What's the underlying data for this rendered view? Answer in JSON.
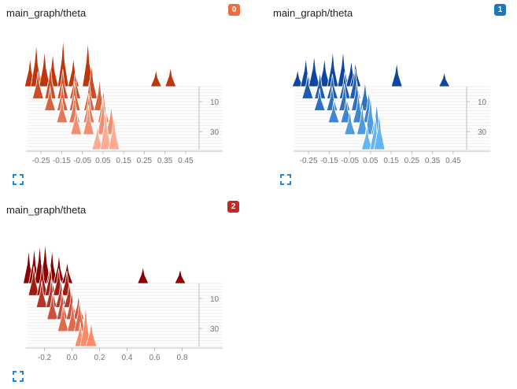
{
  "cards": [
    {
      "title": "main_graph/theta",
      "badge": "0",
      "badge_color": "#ef6c3e",
      "palette": [
        "#bf360c",
        "#ffab91"
      ],
      "expand_icon": "fullscreen-icon",
      "chart_data": {
        "type": "histogram",
        "title": "main_graph/theta",
        "x_range": [
          -0.3,
          0.5
        ],
        "x_ticks": [
          -0.25,
          -0.15,
          -0.05,
          0.05,
          0.15,
          0.25,
          0.35,
          0.45
        ],
        "x_tick_labels": [
          "-0.25",
          "-0.15",
          "-0.05",
          "0.05",
          "0.15",
          "0.25",
          "0.35",
          "0.45"
        ],
        "step_ticks": [
          10,
          30
        ],
        "step_tick_labels": [
          "10",
          "30"
        ],
        "slices": [
          {
            "step": 0,
            "peaks": [
              [
                -0.28,
                0.6
              ],
              [
                -0.25,
                0.9
              ],
              [
                -0.21,
                0.75
              ],
              [
                -0.17,
                0.7
              ],
              [
                -0.12,
                1.0
              ],
              [
                -0.07,
                0.6
              ],
              [
                0.0,
                0.95
              ],
              [
                0.33,
                0.35
              ],
              [
                0.4,
                0.4
              ]
            ]
          },
          {
            "step": 8,
            "peaks": [
              [
                -0.26,
                0.55
              ],
              [
                -0.2,
                0.7
              ],
              [
                -0.14,
                0.6
              ],
              [
                -0.08,
                0.55
              ],
              [
                0.0,
                0.7
              ]
            ]
          },
          {
            "step": 16,
            "peaks": [
              [
                -0.22,
                0.5
              ],
              [
                -0.16,
                0.55
              ],
              [
                -0.1,
                0.6
              ],
              [
                -0.03,
                0.6
              ],
              [
                0.02,
                0.65
              ]
            ]
          },
          {
            "step": 24,
            "peaks": [
              [
                -0.18,
                0.5
              ],
              [
                -0.12,
                0.55
              ],
              [
                -0.05,
                0.6
              ],
              [
                0.02,
                0.7
              ]
            ]
          },
          {
            "step": 32,
            "peaks": [
              [
                -0.13,
                0.55
              ],
              [
                -0.07,
                0.6
              ],
              [
                0.0,
                0.75
              ],
              [
                0.04,
                0.6
              ]
            ]
          },
          {
            "step": 42,
            "peaks": [
              [
                -0.05,
                0.5
              ],
              [
                -0.01,
                0.85
              ],
              [
                0.03,
                0.7
              ]
            ]
          }
        ]
      }
    },
    {
      "title": "main_graph/theta",
      "badge": "1",
      "badge_color": "#1f77b4",
      "palette": [
        "#0d47a1",
        "#64b5f6"
      ],
      "expand_icon": "fullscreen-icon",
      "chart_data": {
        "type": "histogram",
        "title": "main_graph/theta",
        "x_range": [
          -0.3,
          0.5
        ],
        "x_ticks": [
          -0.25,
          -0.15,
          -0.05,
          0.05,
          0.15,
          0.25,
          0.35,
          0.45
        ],
        "x_tick_labels": [
          "-0.25",
          "-0.15",
          "-0.05",
          "0.05",
          "0.15",
          "0.25",
          "0.35",
          "0.45"
        ],
        "step_ticks": [
          10,
          30
        ],
        "step_tick_labels": [
          "10",
          "30"
        ],
        "slices": [
          {
            "step": 0,
            "peaks": [
              [
                -0.28,
                0.35
              ],
              [
                -0.24,
                0.6
              ],
              [
                -0.2,
                0.65
              ],
              [
                -0.15,
                0.6
              ],
              [
                -0.11,
                0.75
              ],
              [
                -0.06,
                0.75
              ],
              [
                -0.02,
                0.55
              ],
              [
                0.0,
                0.5
              ],
              [
                0.2,
                0.5
              ],
              [
                0.43,
                0.3
              ]
            ]
          },
          {
            "step": 8,
            "peaks": [
              [
                -0.25,
                0.5
              ],
              [
                -0.19,
                0.55
              ],
              [
                -0.13,
                0.5
              ],
              [
                -0.07,
                0.55
              ],
              [
                -0.02,
                0.6
              ]
            ]
          },
          {
            "step": 16,
            "peaks": [
              [
                -0.21,
                0.45
              ],
              [
                -0.15,
                0.5
              ],
              [
                -0.09,
                0.55
              ],
              [
                -0.03,
                0.6
              ],
              [
                0.01,
                0.6
              ]
            ]
          },
          {
            "step": 24,
            "peaks": [
              [
                -0.16,
                0.45
              ],
              [
                -0.1,
                0.5
              ],
              [
                -0.04,
                0.6
              ],
              [
                0.01,
                0.65
              ]
            ]
          },
          {
            "step": 32,
            "peaks": [
              [
                -0.1,
                0.5
              ],
              [
                -0.04,
                0.6
              ],
              [
                0.0,
                0.8
              ],
              [
                0.03,
                0.65
              ]
            ]
          },
          {
            "step": 42,
            "peaks": [
              [
                -0.04,
                0.5
              ],
              [
                0.0,
                0.7
              ],
              [
                0.02,
                0.75
              ]
            ]
          }
        ]
      }
    },
    {
      "title": "main_graph/theta",
      "badge": "2",
      "badge_color": "#c62828",
      "palette": [
        "#8b0000",
        "#ff8a65"
      ],
      "expand_icon": "fullscreen-icon",
      "chart_data": {
        "type": "histogram",
        "title": "main_graph/theta",
        "x_range": [
          -0.3,
          0.9
        ],
        "x_ticks": [
          -0.2,
          0.0,
          0.2,
          0.4,
          0.6,
          0.8
        ],
        "x_tick_labels": [
          "-0.2",
          "0.0",
          "0.2",
          "0.4",
          "0.6",
          "0.8"
        ],
        "step_ticks": [
          10,
          30
        ],
        "step_tick_labels": [
          "10",
          "30"
        ],
        "slices": [
          {
            "step": 0,
            "peaks": [
              [
                -0.28,
                0.7
              ],
              [
                -0.24,
                0.75
              ],
              [
                -0.2,
                0.8
              ],
              [
                -0.16,
                0.85
              ],
              [
                -0.11,
                0.7
              ],
              [
                -0.06,
                0.6
              ],
              [
                0.0,
                0.45
              ],
              [
                0.55,
                0.35
              ],
              [
                0.82,
                0.3
              ]
            ]
          },
          {
            "step": 8,
            "peaks": [
              [
                -0.27,
                0.6
              ],
              [
                -0.21,
                0.65
              ],
              [
                -0.15,
                0.6
              ],
              [
                -0.09,
                0.55
              ],
              [
                -0.03,
                0.5
              ]
            ]
          },
          {
            "step": 16,
            "peaks": [
              [
                -0.24,
                0.55
              ],
              [
                -0.17,
                0.6
              ],
              [
                -0.1,
                0.55
              ],
              [
                -0.04,
                0.5
              ]
            ]
          },
          {
            "step": 24,
            "peaks": [
              [
                -0.19,
                0.55
              ],
              [
                -0.12,
                0.6
              ],
              [
                -0.05,
                0.6
              ],
              [
                0.0,
                0.5
              ]
            ]
          },
          {
            "step": 32,
            "peaks": [
              [
                -0.14,
                0.55
              ],
              [
                -0.07,
                0.6
              ],
              [
                -0.02,
                0.65
              ]
            ]
          },
          {
            "step": 42,
            "peaks": [
              [
                -0.05,
                0.5
              ],
              [
                -0.01,
                0.85
              ],
              [
                0.03,
                0.5
              ]
            ]
          }
        ]
      }
    }
  ]
}
